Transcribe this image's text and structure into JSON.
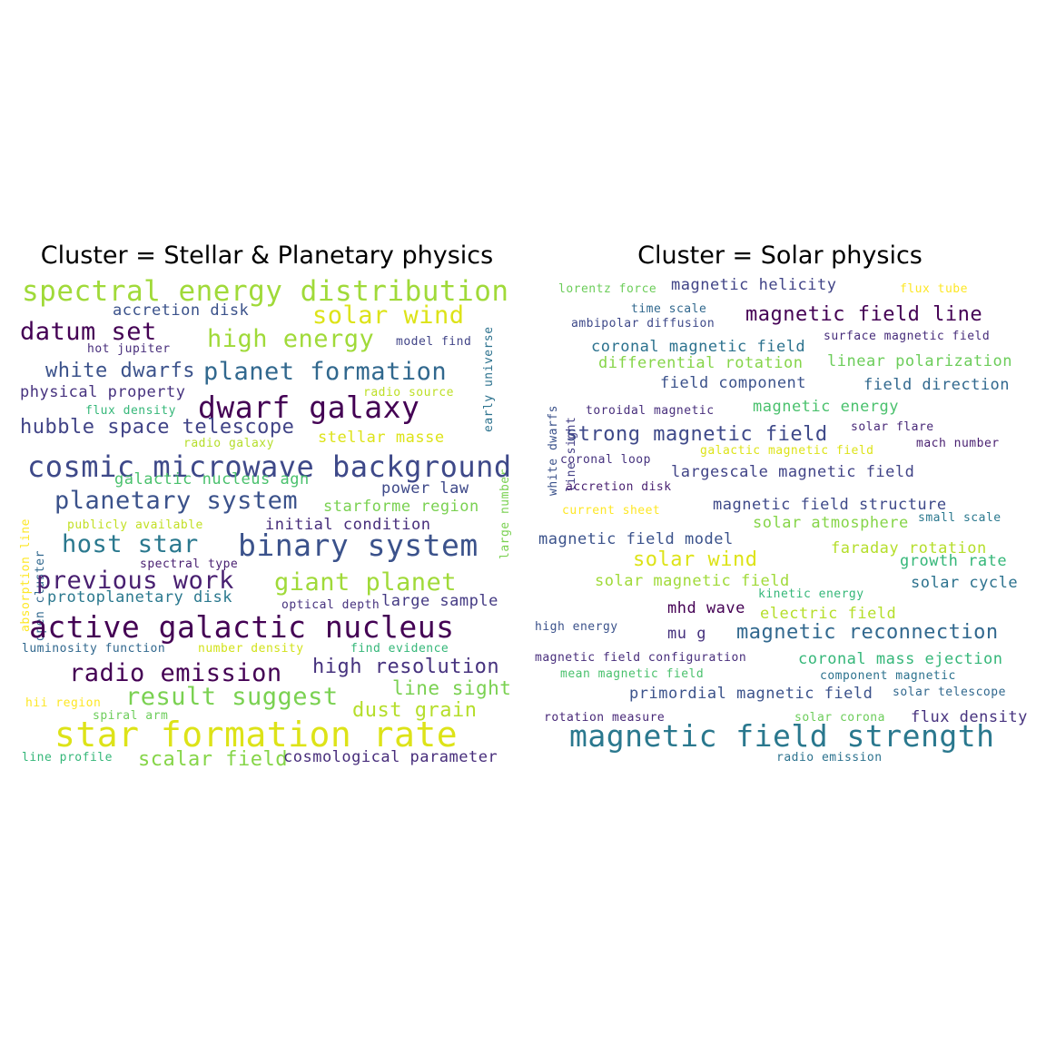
{
  "chart_data": [
    {
      "type": "wordcloud",
      "title": "Cluster = Stellar & Planetary physics",
      "words": [
        {
          "text": "spectral energy distribution",
          "weight": 5,
          "color": "#a0da39"
        },
        {
          "text": "accretion disk",
          "weight": 2,
          "color": "#3b528b"
        },
        {
          "text": "solar wind",
          "weight": 4,
          "color": "#dde318"
        },
        {
          "text": "datum set",
          "weight": 4,
          "color": "#440154"
        },
        {
          "text": "high energy",
          "weight": 4,
          "color": "#a0da39"
        },
        {
          "text": "model find",
          "weight": 1,
          "color": "#414487"
        },
        {
          "text": "hot jupiter",
          "weight": 1,
          "color": "#472d7b"
        },
        {
          "text": "white dwarfs",
          "weight": 3,
          "color": "#3b528b"
        },
        {
          "text": "planet formation",
          "weight": 4,
          "color": "#31688e"
        },
        {
          "text": "early universe",
          "weight": 1,
          "color": "#2c728e"
        },
        {
          "text": "large number",
          "weight": 1,
          "color": "#7ad151"
        },
        {
          "text": "physical property",
          "weight": 2,
          "color": "#46327e"
        },
        {
          "text": "radio source",
          "weight": 1,
          "color": "#bddf26"
        },
        {
          "text": "dwarf galaxy",
          "weight": 5,
          "color": "#440154"
        },
        {
          "text": "flux density",
          "weight": 1,
          "color": "#35b779"
        },
        {
          "text": "hubble space telescope",
          "weight": 3,
          "color": "#414487"
        },
        {
          "text": "stellar masse",
          "weight": 2,
          "color": "#dde318"
        },
        {
          "text": "radio galaxy",
          "weight": 1,
          "color": "#b5de2b"
        },
        {
          "text": "cosmic microwave background",
          "weight": 5,
          "color": "#3e4989"
        },
        {
          "text": "galactic nucleus agn",
          "weight": 2,
          "color": "#4ac16d"
        },
        {
          "text": "absorption line",
          "weight": 1,
          "color": "#fde725"
        },
        {
          "text": "open cluster",
          "weight": 1,
          "color": "#31688e"
        },
        {
          "text": "planetary system",
          "weight": 4,
          "color": "#3b528b"
        },
        {
          "text": "starforme region",
          "weight": 2,
          "color": "#7ad151"
        },
        {
          "text": "power law",
          "weight": 2,
          "color": "#3e4989"
        },
        {
          "text": "publicly available",
          "weight": 1,
          "color": "#c2df23"
        },
        {
          "text": "initial condition",
          "weight": 2,
          "color": "#472d7b"
        },
        {
          "text": "host star",
          "weight": 4,
          "color": "#2a788e"
        },
        {
          "text": "binary system",
          "weight": 5,
          "color": "#3b528b"
        },
        {
          "text": "previous work",
          "weight": 4,
          "color": "#481f70"
        },
        {
          "text": "giant planet",
          "weight": 4,
          "color": "#a0da39"
        },
        {
          "text": "protoplanetary disk",
          "weight": 2,
          "color": "#2a788e"
        },
        {
          "text": "optical depth",
          "weight": 1,
          "color": "#46327e"
        },
        {
          "text": "large sample",
          "weight": 2,
          "color": "#443a83"
        },
        {
          "text": "active galactic nucleus",
          "weight": 5,
          "color": "#440154"
        },
        {
          "text": "luminosity function",
          "weight": 1,
          "color": "#31688e"
        },
        {
          "text": "number density",
          "weight": 1,
          "color": "#d2e21b"
        },
        {
          "text": "find evidence",
          "weight": 1,
          "color": "#35b779"
        },
        {
          "text": "radio emission",
          "weight": 4,
          "color": "#440154"
        },
        {
          "text": "high resolution",
          "weight": 3,
          "color": "#46327e"
        },
        {
          "text": "line sight",
          "weight": 3,
          "color": "#7ad151"
        },
        {
          "text": "hii region",
          "weight": 1,
          "color": "#fde725"
        },
        {
          "text": "spiral arm",
          "weight": 1,
          "color": "#6ccd5a"
        },
        {
          "text": "result suggest",
          "weight": 4,
          "color": "#7ad151"
        },
        {
          "text": "dust grain",
          "weight": 3,
          "color": "#b5de2b"
        },
        {
          "text": "star formation rate",
          "weight": 6,
          "color": "#dde318"
        },
        {
          "text": "line profile",
          "weight": 1,
          "color": "#35b779"
        },
        {
          "text": "scalar field",
          "weight": 3,
          "color": "#86d549"
        },
        {
          "text": "cosmological parameter",
          "weight": 2,
          "color": "#472d7b"
        },
        {
          "text": "spectral type",
          "weight": 1,
          "color": "#481f70"
        }
      ]
    },
    {
      "type": "wordcloud",
      "title": "Cluster = Solar physics",
      "words": [
        {
          "text": "lorentz force",
          "weight": 1,
          "color": "#6ccd5a"
        },
        {
          "text": "magnetic helicity",
          "weight": 2,
          "color": "#414487"
        },
        {
          "text": "flux tube",
          "weight": 1,
          "color": "#fde725"
        },
        {
          "text": "white dwarfs",
          "weight": 1,
          "color": "#3b528b"
        },
        {
          "text": "line sight",
          "weight": 1,
          "color": "#433e85"
        },
        {
          "text": "time scale",
          "weight": 1,
          "color": "#31688e"
        },
        {
          "text": "ambipolar diffusion",
          "weight": 1,
          "color": "#3e4989"
        },
        {
          "text": "magnetic field line",
          "weight": 3,
          "color": "#440154"
        },
        {
          "text": "coronal magnetic field",
          "weight": 2,
          "color": "#2c728e"
        },
        {
          "text": "surface magnetic field",
          "weight": 1,
          "color": "#472d7b"
        },
        {
          "text": "differential rotation",
          "weight": 2,
          "color": "#86d549"
        },
        {
          "text": "linear polarization",
          "weight": 2,
          "color": "#6ccd5a"
        },
        {
          "text": "field component",
          "weight": 2,
          "color": "#3b528b"
        },
        {
          "text": "field direction",
          "weight": 2,
          "color": "#31688e"
        },
        {
          "text": "toroidal magnetic",
          "weight": 1,
          "color": "#472d7b"
        },
        {
          "text": "magnetic energy",
          "weight": 2,
          "color": "#4ac16d"
        },
        {
          "text": "solar flare",
          "weight": 1,
          "color": "#482878"
        },
        {
          "text": "strong magnetic field",
          "weight": 3,
          "color": "#3e4989"
        },
        {
          "text": "galactic magnetic field",
          "weight": 1,
          "color": "#dde318"
        },
        {
          "text": "mach number",
          "weight": 1,
          "color": "#481f70"
        },
        {
          "text": "coronal loop",
          "weight": 1,
          "color": "#46327e"
        },
        {
          "text": "largescale magnetic field",
          "weight": 2,
          "color": "#414487"
        },
        {
          "text": "accretion disk",
          "weight": 1,
          "color": "#481f70"
        },
        {
          "text": "current sheet",
          "weight": 1,
          "color": "#fde725"
        },
        {
          "text": "magnetic field structure",
          "weight": 2,
          "color": "#3e4989"
        },
        {
          "text": "solar atmosphere",
          "weight": 2,
          "color": "#86d549"
        },
        {
          "text": "small scale",
          "weight": 1,
          "color": "#2a788e"
        },
        {
          "text": "magnetic field model",
          "weight": 2,
          "color": "#3b528b"
        },
        {
          "text": "solar wind",
          "weight": 3,
          "color": "#dde318"
        },
        {
          "text": "faraday rotation",
          "weight": 2,
          "color": "#b5de2b"
        },
        {
          "text": "growth rate",
          "weight": 2,
          "color": "#35b779"
        },
        {
          "text": "solar magnetic field",
          "weight": 2,
          "color": "#a0da39"
        },
        {
          "text": "kinetic energy",
          "weight": 1,
          "color": "#35b779"
        },
        {
          "text": "solar cycle",
          "weight": 2,
          "color": "#2c728e"
        },
        {
          "text": "mhd wave",
          "weight": 2,
          "color": "#440154"
        },
        {
          "text": "electric field",
          "weight": 2,
          "color": "#b5de2b"
        },
        {
          "text": "high energy",
          "weight": 1,
          "color": "#3b528b"
        },
        {
          "text": "mu g",
          "weight": 2,
          "color": "#46327e"
        },
        {
          "text": "magnetic reconnection",
          "weight": 3,
          "color": "#31688e"
        },
        {
          "text": "magnetic field configuration",
          "weight": 1,
          "color": "#472d7b"
        },
        {
          "text": "coronal mass ejection",
          "weight": 2,
          "color": "#35b779"
        },
        {
          "text": "mean magnetic field",
          "weight": 1,
          "color": "#4ac16d"
        },
        {
          "text": "component magnetic",
          "weight": 1,
          "color": "#2c728e"
        },
        {
          "text": "primordial magnetic field",
          "weight": 2,
          "color": "#3b528b"
        },
        {
          "text": "solar telescope",
          "weight": 1,
          "color": "#31688e"
        },
        {
          "text": "rotation measure",
          "weight": 1,
          "color": "#482878"
        },
        {
          "text": "solar corona",
          "weight": 1,
          "color": "#6ccd5a"
        },
        {
          "text": "flux density",
          "weight": 2,
          "color": "#46327e"
        },
        {
          "text": "magnetic field strength",
          "weight": 5,
          "color": "#2a788e"
        },
        {
          "text": "radio emission",
          "weight": 1,
          "color": "#2c728e"
        }
      ]
    }
  ]
}
